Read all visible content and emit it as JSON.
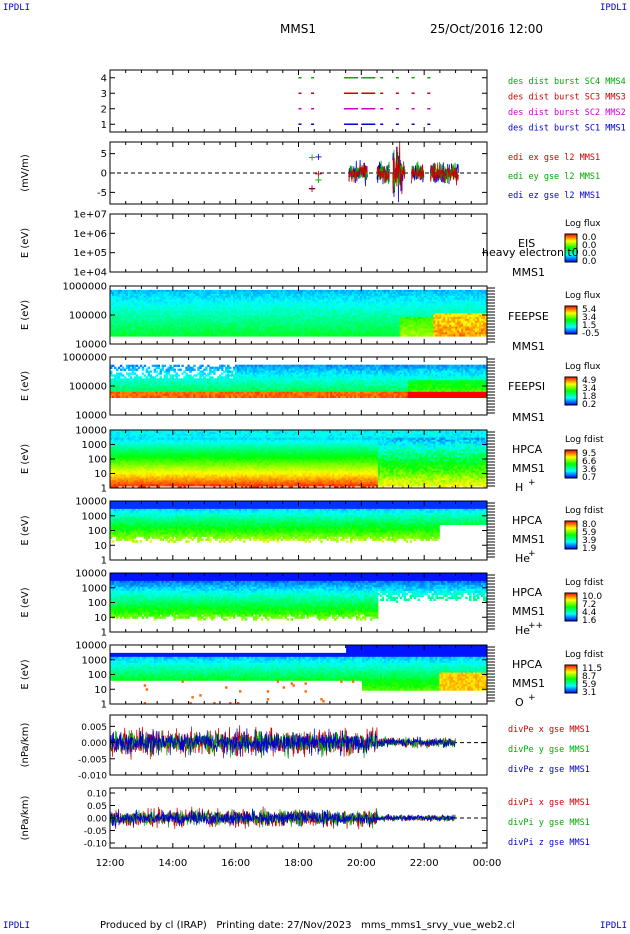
{
  "corner_labels": {
    "tl": "IPDLI",
    "tr": "IPDLI",
    "bl": "IPDLI",
    "br": "IPDLI"
  },
  "header": {
    "spacecraft": "MMS1",
    "datetime": "25/Oct/2016 12:00"
  },
  "footer": {
    "text": "Produced by cl (IRAP)   Printing date: 27/Nov/2023   mms_mms1_srvy_vue_web2.cl"
  },
  "colors": {
    "blue": "#0000cc",
    "magenta": "#cc00cc",
    "red": "#cc0000",
    "green": "#00aa00",
    "colorbar": [
      "#0000ff",
      "#00ffff",
      "#00ff00",
      "#ffff00",
      "#ff0000"
    ]
  },
  "chart_data": [
    {
      "type": "scatter",
      "id": "burst",
      "x_unit": "UT hours",
      "ylim": [
        0.5,
        4.5
      ],
      "yticks": [
        "1",
        "2",
        "3",
        "4"
      ],
      "series": [
        {
          "name": "des dist burst SC1 MMS1",
          "color": "blue",
          "y": 1,
          "x": [
            18.0,
            18.4,
            19.45,
            20.0,
            20.6,
            21.1,
            21.6,
            22.1
          ]
        },
        {
          "name": "des dist burst SC2 MMS2",
          "color": "magenta",
          "y": 2,
          "x": [
            18.0,
            18.4,
            19.45,
            20.0,
            20.6,
            21.1,
            21.6,
            22.1
          ]
        },
        {
          "name": "des dist burst SC3 MMS3",
          "color": "red",
          "y": 3,
          "x": [
            18.0,
            18.4,
            19.45,
            20.0,
            20.6,
            21.1,
            21.6,
            22.1
          ]
        },
        {
          "name": "des dist burst SC4 MMS4",
          "color": "green",
          "y": 4,
          "x": [
            18.0,
            18.4,
            19.45,
            20.0,
            20.6,
            21.1,
            21.6,
            22.1
          ]
        }
      ]
    },
    {
      "type": "line",
      "id": "efield",
      "ylabel": "(mV/m)",
      "ylim": [
        -8,
        8
      ],
      "yticks": [
        "5",
        "0",
        "-5"
      ],
      "series": [
        {
          "name": "edi ex gse l2 MMS1",
          "color": "red"
        },
        {
          "name": "edi ey gse l2 MMS1",
          "color": "green"
        },
        {
          "name": "edi ez gse l2 MMS1",
          "color": "blue"
        }
      ],
      "active_range": [
        18.2,
        23.1
      ]
    },
    {
      "type": "heatmap",
      "id": "eis",
      "ylabel": "E (eV)",
      "yticks": [
        "1e+07",
        "1e+06",
        "1e+05",
        "1e+04"
      ],
      "labels": [
        "EIS",
        "heavy electron t0",
        "MMS1"
      ],
      "colorbar_title": "Log flux",
      "colorbar_ticks": [
        "0.0",
        "0.0",
        "0.0",
        "0.0"
      ],
      "empty": true
    },
    {
      "type": "heatmap",
      "id": "feepse",
      "ylabel": "E (eV)",
      "yticks": [
        "1000000",
        "100000",
        "10000"
      ],
      "labels": [
        "FEEPSE",
        "MMS1"
      ],
      "colorbar_title": "Log flux",
      "colorbar_ticks": [
        "5.4",
        "3.4",
        "1.5",
        "-0.5"
      ]
    },
    {
      "type": "heatmap",
      "id": "feepsi",
      "ylabel": "E (eV)",
      "yticks": [
        "1000000",
        "100000",
        "10000"
      ],
      "labels": [
        "FEEPSI",
        "MMS1"
      ],
      "colorbar_title": "Log flux",
      "colorbar_ticks": [
        "4.9",
        "3.4",
        "1.8",
        "0.2"
      ]
    },
    {
      "type": "heatmap",
      "id": "hpca_h",
      "ylabel": "E (eV)",
      "yticks": [
        "10000",
        "1000",
        "100",
        "10",
        "1"
      ],
      "labels": [
        "HPCA",
        "MMS1",
        "H",
        "+"
      ],
      "colorbar_title": "Log fdist",
      "colorbar_ticks": [
        "9.5",
        "6.6",
        "3.6",
        "0.7"
      ]
    },
    {
      "type": "heatmap",
      "id": "hpca_he",
      "ylabel": "E (eV)",
      "yticks": [
        "10000",
        "1000",
        "100",
        "10",
        "1"
      ],
      "labels": [
        "HPCA",
        "MMS1",
        "He",
        "+"
      ],
      "colorbar_title": "Log fdist",
      "colorbar_ticks": [
        "8.0",
        "5.9",
        "3.9",
        "1.9"
      ]
    },
    {
      "type": "heatmap",
      "id": "hpca_hepp",
      "ylabel": "E (eV)",
      "yticks": [
        "10000",
        "1000",
        "100",
        "10",
        "1"
      ],
      "labels": [
        "HPCA",
        "MMS1",
        "He",
        "++"
      ],
      "colorbar_title": "Log fdist",
      "colorbar_ticks": [
        "10.0",
        "7.2",
        "4.4",
        "1.6"
      ]
    },
    {
      "type": "heatmap",
      "id": "hpca_o",
      "ylabel": "E (eV)",
      "yticks": [
        "10000",
        "1000",
        "100",
        "10",
        "1"
      ],
      "labels": [
        "HPCA",
        "MMS1",
        "O",
        "+"
      ],
      "colorbar_title": "Log fdist",
      "colorbar_ticks": [
        "11.5",
        "8.7",
        "5.9",
        "3.1"
      ]
    },
    {
      "type": "line",
      "id": "divpe",
      "ylabel": "(nPa/km)",
      "ylim": [
        -0.01,
        0.0085
      ],
      "yticks": [
        "0.005",
        "0.000",
        "-0.005",
        "-0.010"
      ],
      "series": [
        {
          "name": "divPe x gse MMS1",
          "color": "red"
        },
        {
          "name": "divPe y gse MMS1",
          "color": "green"
        },
        {
          "name": "divPe z gse MMS1",
          "color": "blue"
        }
      ]
    },
    {
      "type": "line",
      "id": "divpi",
      "ylabel": "(nPa/km)",
      "ylim": [
        -0.12,
        0.12
      ],
      "yticks": [
        "0.10",
        "0.05",
        "0.00",
        "-0.05",
        "-0.10"
      ],
      "series": [
        {
          "name": "divPi x gse MMS1",
          "color": "red"
        },
        {
          "name": "divPi y gse MMS1",
          "color": "green"
        },
        {
          "name": "divPi z gse MMS1",
          "color": "blue"
        }
      ]
    }
  ],
  "time_axis": {
    "range_hours": [
      12,
      24
    ],
    "ticks": [
      "12:00",
      "14:00",
      "16:00",
      "18:00",
      "20:00",
      "22:00",
      "00:00"
    ]
  }
}
